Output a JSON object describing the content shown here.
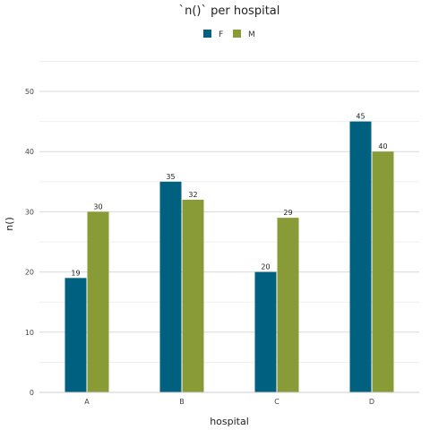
{
  "chart_data": {
    "type": "bar",
    "title": "`n()` per hospital",
    "xlabel": "hospital",
    "ylabel": "n()",
    "categories": [
      "A",
      "B",
      "C",
      "D"
    ],
    "series": [
      {
        "name": "F",
        "values": [
          19,
          35,
          20,
          45
        ],
        "color": "#00607f"
      },
      {
        "name": "M",
        "values": [
          30,
          32,
          29,
          40
        ],
        "color": "#889b37"
      }
    ],
    "ylim": [
      0,
      50
    ],
    "yticks": [
      0,
      10,
      20,
      30,
      40,
      50
    ],
    "grid": true,
    "legend_position": "top-center"
  }
}
